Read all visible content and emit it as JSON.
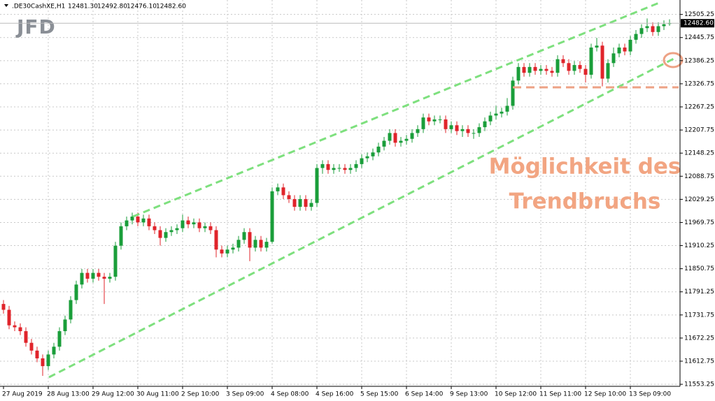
{
  "chart_data": {
    "type": "candlestick",
    "symbol": ".DE30CashXE,H1",
    "header_values": [
      "12481.30",
      "12492.80",
      "12476.10",
      "12482.60"
    ],
    "logo": "JFD",
    "price_label": "12482.60",
    "annotations": [
      "Möglichkeit des",
      "Trendbruchs"
    ],
    "up_color": "#1a9e3a",
    "down_color": "#e0242b",
    "grid": true,
    "ylim": [
      11548,
      12528
    ],
    "yticks": [
      11553.25,
      11612.75,
      11672.25,
      11731.75,
      11791.25,
      11850.75,
      11910.25,
      11969.75,
      12029.25,
      12088.75,
      12148.25,
      12207.75,
      12267.25,
      12326.75,
      12386.25,
      12445.75,
      12505.25
    ],
    "categories": [
      "27 Aug 2019",
      null,
      null,
      null,
      null,
      null,
      null,
      null,
      "28 Aug 13:00",
      null,
      null,
      null,
      null,
      null,
      null,
      null,
      "29 Aug 12:00",
      null,
      null,
      null,
      null,
      null,
      null,
      null,
      "30 Aug 11:00",
      null,
      null,
      null,
      null,
      null,
      null,
      null,
      "2 Sep 10:00",
      null,
      null,
      null,
      null,
      null,
      null,
      null,
      "3 Sep 09:00",
      null,
      null,
      null,
      null,
      null,
      null,
      null,
      "4 Sep 08:00",
      null,
      null,
      null,
      null,
      null,
      null,
      null,
      "4 Sep 16:00",
      null,
      null,
      null,
      null,
      null,
      null,
      null,
      "5 Sep 15:00",
      null,
      null,
      null,
      null,
      null,
      null,
      null,
      "6 Sep 14:00",
      null,
      null,
      null,
      null,
      null,
      null,
      null,
      "9 Sep 13:00",
      null,
      null,
      null,
      null,
      null,
      null,
      null,
      "10 Sep 12:00",
      null,
      null,
      null,
      null,
      null,
      null,
      null,
      "11 Sep 11:00",
      null,
      null,
      null,
      null,
      null,
      null,
      null,
      "12 Sep 10:00",
      null,
      null,
      null,
      null,
      null,
      null,
      null,
      "13 Sep 09:00",
      null,
      null,
      null,
      null,
      null,
      null,
      null
    ],
    "open": [
      11760,
      11745,
      11705,
      11700,
      11690,
      11660,
      11640,
      11620,
      11600,
      11630,
      11650,
      11690,
      11720,
      11770,
      11810,
      11840,
      11825,
      11840,
      11830,
      11825,
      11830,
      11910,
      11960,
      11975,
      11985,
      11970,
      11980,
      11960,
      11950,
      11930,
      11945,
      11950,
      11955,
      11975,
      11965,
      11970,
      11955,
      11960,
      11950,
      11900,
      11890,
      11900,
      11905,
      11925,
      11945,
      11905,
      11925,
      11905,
      11920,
      12050,
      12060,
      12040,
      12030,
      12010,
      12030,
      12010,
      12020,
      12110,
      12120,
      12105,
      12110,
      12110,
      12105,
      12110,
      12120,
      12135,
      12140,
      12150,
      12165,
      12180,
      12200,
      12175,
      12180,
      12185,
      12200,
      12210,
      12240,
      12230,
      12235,
      12235,
      12210,
      12220,
      12205,
      12210,
      12200,
      12200,
      12215,
      12230,
      12245,
      12250,
      12255,
      12270,
      12335,
      12370,
      12355,
      12370,
      12360,
      12365,
      12360,
      12355,
      12390,
      12380,
      12360,
      12375,
      12365,
      12350,
      12420,
      12425,
      12340,
      12380,
      12405,
      12420,
      12410,
      12440,
      12455,
      12470,
      12475,
      12460,
      12475,
      12481.3
    ],
    "high": [
      11770,
      11755,
      11715,
      11710,
      11700,
      11670,
      11650,
      11630,
      11640,
      11660,
      11700,
      11730,
      11780,
      11820,
      11850,
      11850,
      11850,
      11850,
      11840,
      11840,
      11920,
      11970,
      11985,
      11995,
      11995,
      11990,
      11990,
      11970,
      11960,
      11955,
      11960,
      11965,
      11990,
      11985,
      11980,
      11980,
      11970,
      11970,
      11960,
      11910,
      11910,
      11915,
      11935,
      11955,
      11955,
      11935,
      11935,
      11930,
      12060,
      12070,
      12070,
      12050,
      12040,
      12040,
      12040,
      12030,
      12120,
      12130,
      12130,
      12120,
      12120,
      12120,
      12120,
      12130,
      12145,
      12150,
      12160,
      12175,
      12190,
      12210,
      12210,
      12190,
      12195,
      12210,
      12220,
      12250,
      12250,
      12245,
      12245,
      12245,
      12230,
      12230,
      12220,
      12220,
      12210,
      12225,
      12240,
      12255,
      12270,
      12265,
      12290,
      12345,
      12380,
      12380,
      12380,
      12380,
      12375,
      12375,
      12370,
      12400,
      12400,
      12390,
      12385,
      12385,
      12375,
      12430,
      12445,
      12435,
      12390,
      12420,
      12430,
      12430,
      12450,
      12465,
      12480,
      12495,
      12485,
      12485,
      12490,
      12492.8
    ],
    "low": [
      11735,
      11695,
      11690,
      11680,
      11650,
      11630,
      11610,
      11575,
      11590,
      11620,
      11640,
      11680,
      11710,
      11760,
      11800,
      11815,
      11815,
      11820,
      11760,
      11815,
      11820,
      11900,
      11950,
      11965,
      11960,
      11960,
      11950,
      11940,
      11910,
      11920,
      11935,
      11940,
      11945,
      11955,
      11955,
      11945,
      11945,
      11940,
      11880,
      11880,
      11880,
      11890,
      11895,
      11915,
      11870,
      11895,
      11895,
      11895,
      11915,
      12040,
      12030,
      12020,
      12000,
      12000,
      12000,
      12000,
      12010,
      12095,
      12095,
      12095,
      12100,
      12095,
      12095,
      12100,
      12110,
      12125,
      12130,
      12140,
      12155,
      12170,
      12165,
      12165,
      12170,
      12175,
      12190,
      12200,
      12220,
      12220,
      12225,
      12200,
      12200,
      12195,
      12190,
      12190,
      12185,
      12190,
      12205,
      12220,
      12235,
      12240,
      12245,
      12260,
      12325,
      12345,
      12345,
      12350,
      12350,
      12350,
      12345,
      12345,
      12370,
      12350,
      12350,
      12355,
      12330,
      12340,
      12410,
      12320,
      12330,
      12370,
      12395,
      12400,
      12400,
      12430,
      12445,
      12460,
      12450,
      12450,
      12465,
      12476.1
    ],
    "close": [
      11745,
      11705,
      11700,
      11690,
      11660,
      11640,
      11620,
      11600,
      11630,
      11650,
      11690,
      11720,
      11770,
      11810,
      11840,
      11825,
      11840,
      11830,
      11825,
      11830,
      11910,
      11960,
      11975,
      11985,
      11970,
      11980,
      11960,
      11950,
      11930,
      11945,
      11950,
      11955,
      11975,
      11965,
      11970,
      11955,
      11960,
      11950,
      11900,
      11890,
      11900,
      11905,
      11925,
      11945,
      11905,
      11925,
      11905,
      11920,
      12050,
      12060,
      12040,
      12030,
      12010,
      12030,
      12010,
      12020,
      12110,
      12120,
      12105,
      12110,
      12110,
      12105,
      12110,
      12120,
      12135,
      12140,
      12150,
      12165,
      12180,
      12200,
      12175,
      12180,
      12185,
      12200,
      12210,
      12240,
      12230,
      12235,
      12235,
      12210,
      12220,
      12205,
      12210,
      12200,
      12200,
      12215,
      12230,
      12245,
      12250,
      12255,
      12270,
      12335,
      12370,
      12355,
      12370,
      12360,
      12365,
      12360,
      12355,
      12390,
      12380,
      12360,
      12375,
      12365,
      12350,
      12420,
      12425,
      12340,
      12380,
      12405,
      12420,
      12410,
      12440,
      12455,
      12470,
      12475,
      12460,
      12475,
      12480,
      12482.6
    ]
  }
}
